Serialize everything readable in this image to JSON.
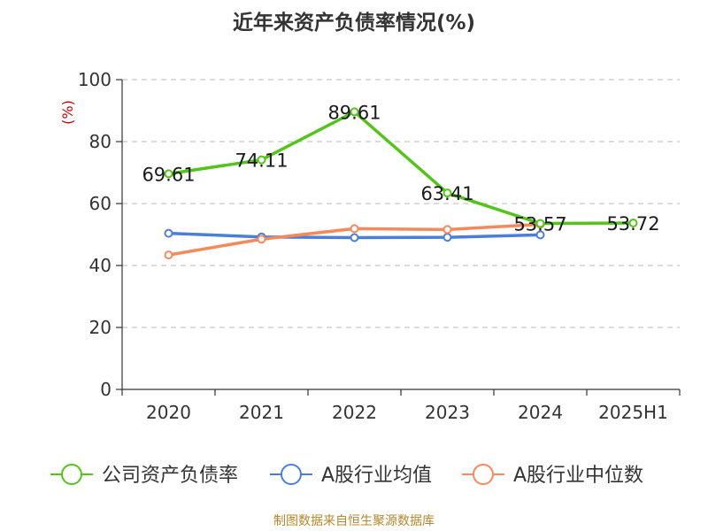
{
  "page": {
    "title": "近年来资产负债率情况(%)",
    "source": "制图数据来自恒生聚源数据库"
  },
  "chart_data": {
    "type": "line",
    "title": "近年来资产负债率情况(%)",
    "unit_label": "(%)",
    "categories": [
      "2020",
      "2021",
      "2022",
      "2023",
      "2024",
      "2025H1"
    ],
    "ylim": [
      0,
      100
    ],
    "yticks": [
      0,
      20,
      40,
      60,
      80,
      100
    ],
    "grid": true,
    "legend_position": "bottom",
    "series": [
      {
        "name": "公司资产负债率",
        "color": "#52c41a",
        "values": [
          69.61,
          74.11,
          89.61,
          63.41,
          53.57,
          53.72
        ],
        "labels": [
          "69.61",
          "74.11",
          "89.61",
          "63.41",
          "53.57",
          "53.72"
        ]
      },
      {
        "name": "A股行业均值",
        "color": "#4a7fd9",
        "values": [
          50.4,
          49.2,
          49.0,
          49.1,
          49.9,
          null
        ]
      },
      {
        "name": "A股行业中位数",
        "color": "#f5895c",
        "values": [
          43.4,
          48.5,
          51.9,
          51.6,
          53.3,
          null
        ]
      }
    ]
  }
}
